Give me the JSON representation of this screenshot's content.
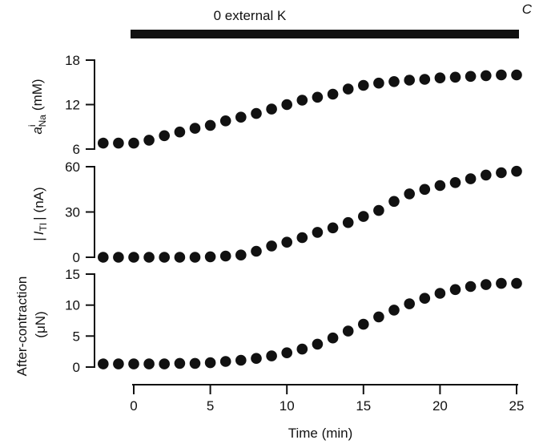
{
  "figure_letter": "C",
  "condition_bar": {
    "label": "0 external K",
    "start": 0,
    "end": 25
  },
  "colors": {
    "ink": "#111111",
    "background": "#ffffff"
  },
  "chart_data": [
    {
      "type": "scatter",
      "ylabel": {
        "symbol": "a",
        "sup": "i",
        "sub": "Na",
        "unit": "(mM)"
      },
      "ylim": [
        6,
        18
      ],
      "yticks": [
        6,
        12,
        18
      ],
      "grid": false,
      "x": [
        -2,
        -1,
        0,
        1,
        2,
        3,
        4,
        5,
        6,
        7,
        8,
        9,
        10,
        11,
        12,
        13,
        14,
        15,
        16,
        17,
        18,
        19,
        20,
        21,
        22,
        23,
        24,
        25
      ],
      "y": [
        6.8,
        6.8,
        6.8,
        7.2,
        7.8,
        8.3,
        8.8,
        9.2,
        9.8,
        10.3,
        10.8,
        11.4,
        12.0,
        12.6,
        13.0,
        13.4,
        14.1,
        14.6,
        14.9,
        15.1,
        15.3,
        15.4,
        15.6,
        15.7,
        15.8,
        15.9,
        16.0,
        16.0
      ]
    },
    {
      "type": "scatter",
      "ylabel": {
        "bar": "|",
        "symbol": "I",
        "sub": "TI",
        "unit": "(nA)"
      },
      "ylim": [
        0,
        60
      ],
      "yticks": [
        0,
        30,
        60
      ],
      "grid": false,
      "x": [
        -2,
        -1,
        0,
        1,
        2,
        3,
        4,
        5,
        6,
        7,
        8,
        9,
        10,
        11,
        12,
        13,
        14,
        15,
        16,
        17,
        18,
        19,
        20,
        21,
        22,
        23,
        24,
        25
      ],
      "y": [
        0,
        0,
        0,
        0,
        0,
        0,
        0,
        0.3,
        0.8,
        1.5,
        4,
        7.5,
        10,
        13,
        16.5,
        19.5,
        23,
        27,
        31,
        37,
        42,
        45,
        47.5,
        49.5,
        52,
        54.5,
        56,
        57
      ]
    },
    {
      "type": "scatter",
      "ylabel": {
        "line1": "After-contraction",
        "line2": "(μN)"
      },
      "ylim": [
        0,
        15
      ],
      "yticks": [
        0,
        5,
        10,
        15
      ],
      "grid": false,
      "xlabel": "Time (min)",
      "xlim": [
        0,
        25
      ],
      "xticks": [
        0,
        5,
        10,
        15,
        20,
        25
      ],
      "x": [
        -2,
        -1,
        0,
        1,
        2,
        3,
        4,
        5,
        6,
        7,
        8,
        9,
        10,
        11,
        12,
        13,
        14,
        15,
        16,
        17,
        18,
        19,
        20,
        21,
        22,
        23,
        24,
        25
      ],
      "y": [
        0.5,
        0.5,
        0.5,
        0.5,
        0.5,
        0.6,
        0.6,
        0.7,
        0.9,
        1.1,
        1.4,
        1.8,
        2.3,
        2.9,
        3.7,
        4.7,
        5.8,
        6.9,
        8.1,
        9.2,
        10.2,
        11.1,
        11.9,
        12.5,
        13.0,
        13.3,
        13.5,
        13.5
      ]
    }
  ]
}
